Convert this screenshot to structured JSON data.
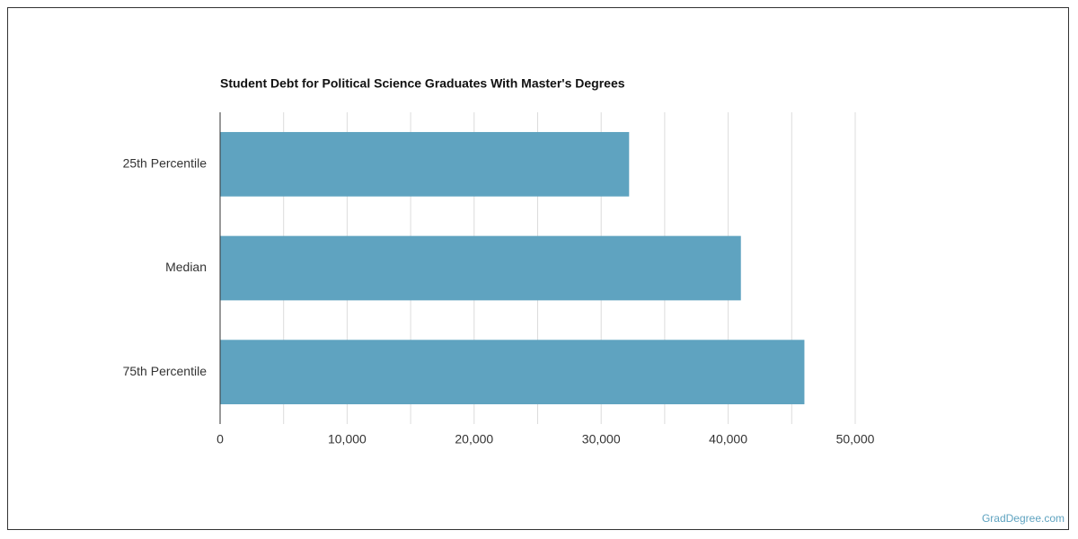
{
  "chart_data": {
    "type": "hbar",
    "title": "Student Debt for Political Science Graduates With Master's Degrees",
    "categories": [
      "25th Percentile",
      "Median",
      "75th Percentile"
    ],
    "values": [
      32200,
      41000,
      46000
    ],
    "color": "#5fa3c0",
    "xlim": [
      0,
      50000
    ],
    "xticks": [
      0,
      {
        "value": 10000,
        "label": "10,000"
      },
      {
        "value": 20000,
        "label": "20,000"
      },
      {
        "value": 30000,
        "label": "30,000"
      },
      {
        "value": 40000,
        "label": "40,000"
      },
      {
        "value": 50000,
        "label": "50,000"
      }
    ],
    "minor_xticks": [
      5000,
      15000,
      25000,
      35000,
      45000
    ],
    "grid": true
  },
  "footer": "GradDegree.com"
}
